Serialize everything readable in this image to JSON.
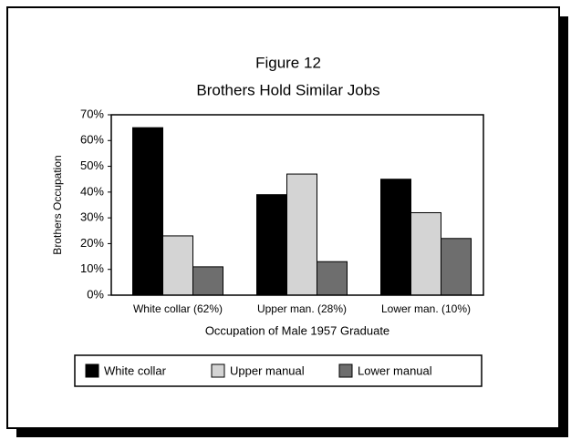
{
  "chart_data": {
    "type": "bar",
    "title": "Figure 12",
    "subtitle": "Brothers Hold Similar Jobs",
    "y_label": "Brothers Occupation",
    "x_label": "Occupation of Male 1957 Graduate",
    "categories": [
      "White collar (62%)",
      "Upper man. (28%)",
      "Lower man. (10%)"
    ],
    "series": [
      {
        "name": "White collar",
        "color": "#000000",
        "values": [
          65,
          39,
          45
        ]
      },
      {
        "name": "Upper manual",
        "color": "#d4d4d4",
        "values": [
          23,
          47,
          32
        ]
      },
      {
        "name": "Lower manual",
        "color": "#6e6e6e",
        "values": [
          11,
          13,
          22
        ]
      }
    ],
    "ylim": [
      0,
      70
    ],
    "yticks": [
      {
        "value": 0,
        "label": "0%"
      },
      {
        "value": 10,
        "label": "10%"
      },
      {
        "value": 20,
        "label": "20%"
      },
      {
        "value": 30,
        "label": "30%"
      },
      {
        "value": 40,
        "label": "40%"
      },
      {
        "value": 50,
        "label": "50%"
      },
      {
        "value": 60,
        "label": "60%"
      },
      {
        "value": 70,
        "label": "70%"
      }
    ],
    "legend": "bottom"
  }
}
